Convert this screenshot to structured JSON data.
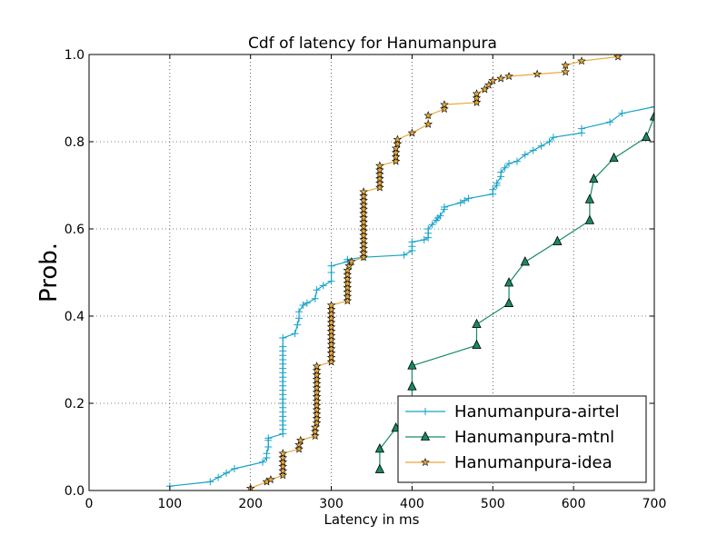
{
  "chart_data": {
    "type": "line",
    "title": "Cdf of latency for Hanumanpura",
    "xlabel": "Latency in ms",
    "ylabel": "Prob.",
    "xlim": [
      0,
      700
    ],
    "ylim": [
      0.0,
      1.0
    ],
    "xticks": [
      "0",
      "100",
      "200",
      "300",
      "400",
      "500",
      "600",
      "700"
    ],
    "yticks": [
      "0.0",
      "0.2",
      "0.4",
      "0.6",
      "0.8",
      "1.0"
    ],
    "grid": true,
    "legend_position": "lower-right",
    "series": [
      {
        "name": "Hanumanpura-airtel",
        "color": "#17a2c8",
        "marker": "plus",
        "points": [
          [
            100,
            0.01
          ],
          [
            150,
            0.02
          ],
          [
            160,
            0.03
          ],
          [
            170,
            0.04
          ],
          [
            180,
            0.05
          ],
          [
            215,
            0.065
          ],
          [
            220,
            0.075
          ],
          [
            220,
            0.085
          ],
          [
            222,
            0.1
          ],
          [
            222,
            0.115
          ],
          [
            222,
            0.12
          ],
          [
            240,
            0.13
          ],
          [
            240,
            0.14
          ],
          [
            240,
            0.15
          ],
          [
            240,
            0.16
          ],
          [
            240,
            0.17
          ],
          [
            240,
            0.18
          ],
          [
            240,
            0.19
          ],
          [
            240,
            0.2
          ],
          [
            240,
            0.21
          ],
          [
            240,
            0.22
          ],
          [
            240,
            0.23
          ],
          [
            240,
            0.24
          ],
          [
            240,
            0.25
          ],
          [
            240,
            0.26
          ],
          [
            240,
            0.27
          ],
          [
            240,
            0.28
          ],
          [
            240,
            0.29
          ],
          [
            240,
            0.3
          ],
          [
            240,
            0.31
          ],
          [
            240,
            0.32
          ],
          [
            240,
            0.33
          ],
          [
            240,
            0.35
          ],
          [
            255,
            0.36
          ],
          [
            258,
            0.38
          ],
          [
            260,
            0.395
          ],
          [
            260,
            0.41
          ],
          [
            265,
            0.425
          ],
          [
            270,
            0.43
          ],
          [
            280,
            0.44
          ],
          [
            282,
            0.46
          ],
          [
            290,
            0.47
          ],
          [
            300,
            0.48
          ],
          [
            300,
            0.5
          ],
          [
            300,
            0.515
          ],
          [
            320,
            0.525
          ],
          [
            320,
            0.53
          ],
          [
            340,
            0.535
          ],
          [
            390,
            0.54
          ],
          [
            400,
            0.55
          ],
          [
            400,
            0.56
          ],
          [
            400,
            0.57
          ],
          [
            415,
            0.575
          ],
          [
            420,
            0.58
          ],
          [
            420,
            0.59
          ],
          [
            420,
            0.6
          ],
          [
            425,
            0.61
          ],
          [
            430,
            0.62
          ],
          [
            432,
            0.625
          ],
          [
            435,
            0.63
          ],
          [
            440,
            0.645
          ],
          [
            440,
            0.65
          ],
          [
            460,
            0.66
          ],
          [
            465,
            0.665
          ],
          [
            470,
            0.67
          ],
          [
            500,
            0.68
          ],
          [
            500,
            0.69
          ],
          [
            505,
            0.7
          ],
          [
            505,
            0.705
          ],
          [
            510,
            0.72
          ],
          [
            510,
            0.73
          ],
          [
            515,
            0.74
          ],
          [
            520,
            0.75
          ],
          [
            530,
            0.755
          ],
          [
            540,
            0.77
          ],
          [
            550,
            0.78
          ],
          [
            560,
            0.79
          ],
          [
            570,
            0.8
          ],
          [
            575,
            0.81
          ],
          [
            610,
            0.82
          ],
          [
            610,
            0.83
          ],
          [
            645,
            0.845
          ],
          [
            660,
            0.865
          ],
          [
            700,
            0.88
          ]
        ]
      },
      {
        "name": "Hanumanpura-mtnl",
        "color": "#1a8a63",
        "marker": "triangle",
        "points": [
          [
            360,
            0.048
          ],
          [
            360,
            0.095
          ],
          [
            380,
            0.143
          ],
          [
            400,
            0.19
          ],
          [
            400,
            0.238
          ],
          [
            400,
            0.286
          ],
          [
            480,
            0.333
          ],
          [
            480,
            0.381
          ],
          [
            520,
            0.429
          ],
          [
            520,
            0.476
          ],
          [
            540,
            0.524
          ],
          [
            580,
            0.571
          ],
          [
            620,
            0.619
          ],
          [
            620,
            0.667
          ],
          [
            625,
            0.714
          ],
          [
            650,
            0.762
          ],
          [
            690,
            0.81
          ],
          [
            700,
            0.857
          ]
        ]
      },
      {
        "name": "Hanumanpura-idea",
        "color": "#e8a93a",
        "marker": "star",
        "points": [
          [
            200,
            0.005
          ],
          [
            220,
            0.02
          ],
          [
            225,
            0.025
          ],
          [
            240,
            0.035
          ],
          [
            240,
            0.045
          ],
          [
            240,
            0.055
          ],
          [
            240,
            0.065
          ],
          [
            240,
            0.075
          ],
          [
            240,
            0.085
          ],
          [
            260,
            0.095
          ],
          [
            260,
            0.105
          ],
          [
            262,
            0.115
          ],
          [
            280,
            0.125
          ],
          [
            280,
            0.135
          ],
          [
            280,
            0.145
          ],
          [
            282,
            0.155
          ],
          [
            282,
            0.165
          ],
          [
            282,
            0.175
          ],
          [
            282,
            0.185
          ],
          [
            282,
            0.195
          ],
          [
            282,
            0.205
          ],
          [
            282,
            0.215
          ],
          [
            282,
            0.225
          ],
          [
            282,
            0.235
          ],
          [
            282,
            0.245
          ],
          [
            282,
            0.255
          ],
          [
            282,
            0.265
          ],
          [
            282,
            0.275
          ],
          [
            282,
            0.285
          ],
          [
            300,
            0.295
          ],
          [
            300,
            0.305
          ],
          [
            300,
            0.315
          ],
          [
            300,
            0.325
          ],
          [
            300,
            0.335
          ],
          [
            300,
            0.345
          ],
          [
            300,
            0.355
          ],
          [
            300,
            0.365
          ],
          [
            300,
            0.375
          ],
          [
            300,
            0.385
          ],
          [
            300,
            0.395
          ],
          [
            300,
            0.405
          ],
          [
            300,
            0.415
          ],
          [
            300,
            0.425
          ],
          [
            320,
            0.435
          ],
          [
            320,
            0.445
          ],
          [
            320,
            0.455
          ],
          [
            320,
            0.465
          ],
          [
            320,
            0.475
          ],
          [
            320,
            0.485
          ],
          [
            320,
            0.495
          ],
          [
            320,
            0.505
          ],
          [
            322,
            0.515
          ],
          [
            325,
            0.525
          ],
          [
            340,
            0.535
          ],
          [
            340,
            0.545
          ],
          [
            340,
            0.555
          ],
          [
            340,
            0.565
          ],
          [
            340,
            0.575
          ],
          [
            340,
            0.585
          ],
          [
            340,
            0.595
          ],
          [
            340,
            0.605
          ],
          [
            340,
            0.615
          ],
          [
            340,
            0.625
          ],
          [
            340,
            0.635
          ],
          [
            340,
            0.645
          ],
          [
            340,
            0.655
          ],
          [
            340,
            0.665
          ],
          [
            340,
            0.675
          ],
          [
            340,
            0.685
          ],
          [
            360,
            0.695
          ],
          [
            360,
            0.705
          ],
          [
            360,
            0.715
          ],
          [
            360,
            0.725
          ],
          [
            360,
            0.735
          ],
          [
            360,
            0.745
          ],
          [
            380,
            0.755
          ],
          [
            380,
            0.765
          ],
          [
            380,
            0.775
          ],
          [
            380,
            0.785
          ],
          [
            382,
            0.795
          ],
          [
            382,
            0.805
          ],
          [
            400,
            0.82
          ],
          [
            420,
            0.84
          ],
          [
            420,
            0.86
          ],
          [
            440,
            0.875
          ],
          [
            440,
            0.885
          ],
          [
            480,
            0.89
          ],
          [
            480,
            0.9
          ],
          [
            480,
            0.91
          ],
          [
            490,
            0.92
          ],
          [
            495,
            0.93
          ],
          [
            500,
            0.94
          ],
          [
            510,
            0.945
          ],
          [
            520,
            0.95
          ],
          [
            555,
            0.955
          ],
          [
            590,
            0.96
          ],
          [
            590,
            0.975
          ],
          [
            610,
            0.985
          ],
          [
            655,
            0.995
          ]
        ]
      }
    ]
  }
}
